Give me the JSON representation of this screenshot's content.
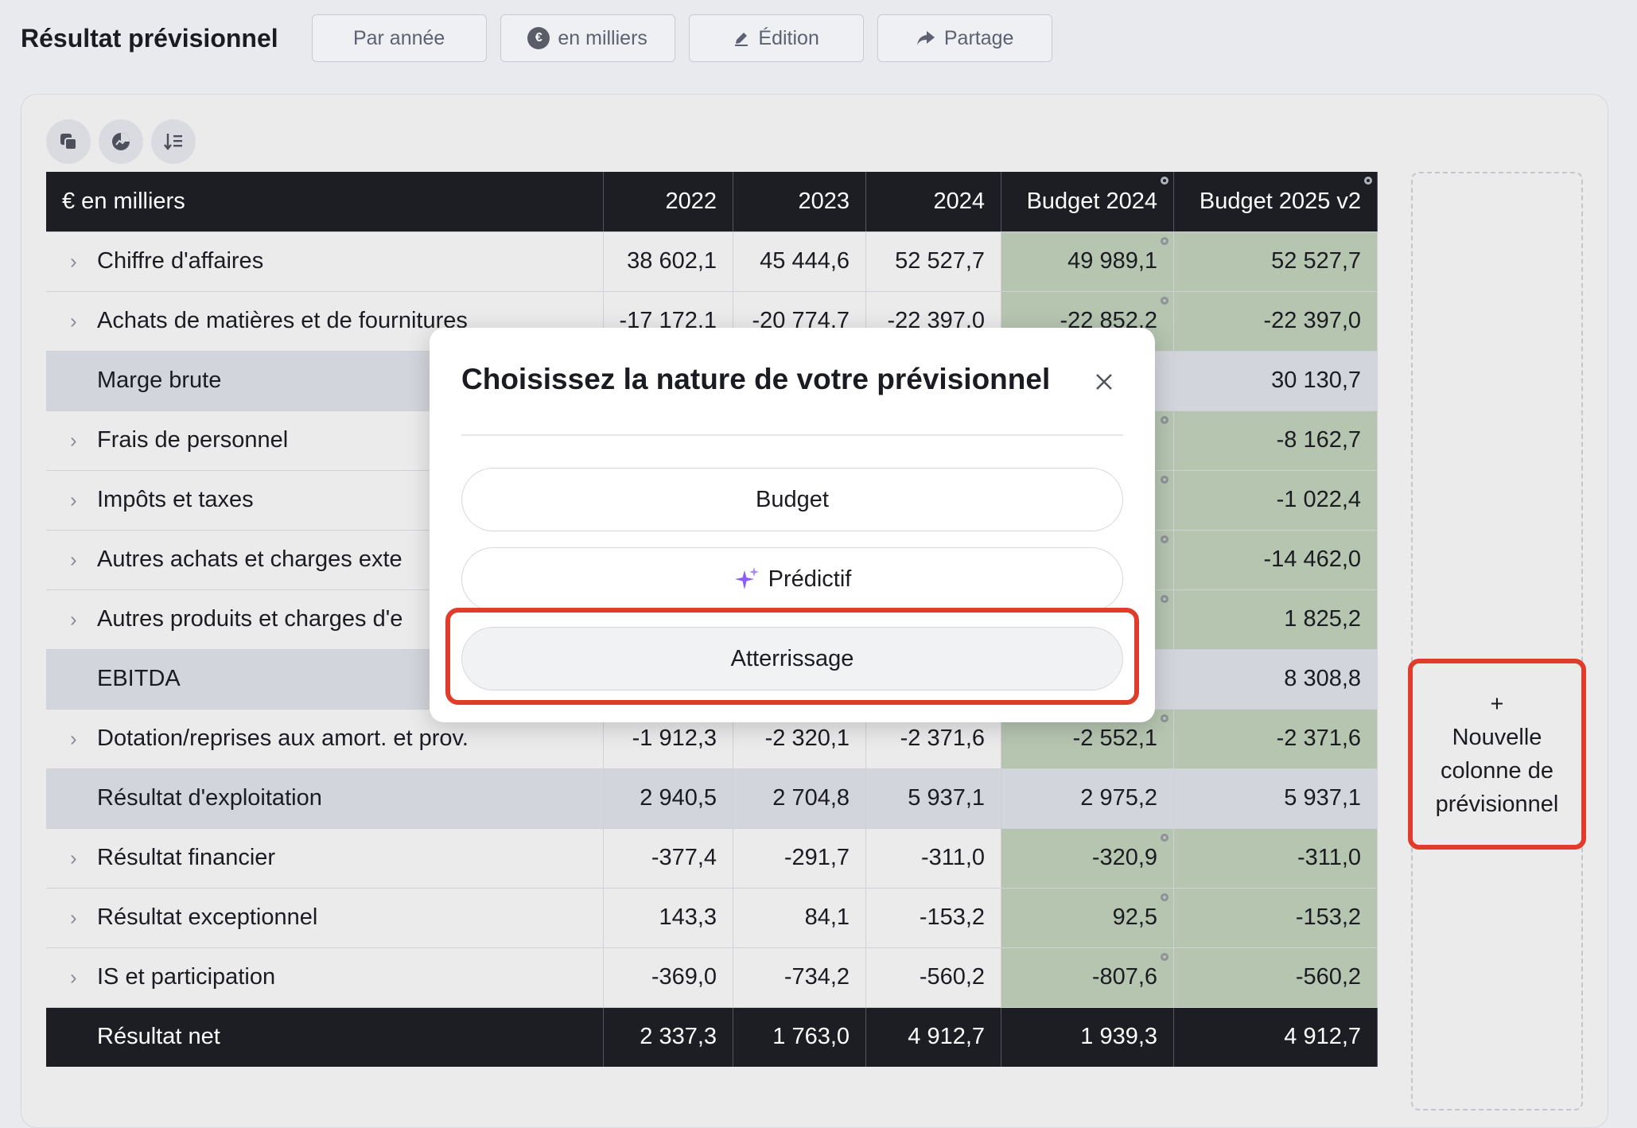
{
  "page": {
    "title": "Résultat prévisionnel",
    "toolbar": [
      {
        "label": "Par année",
        "icon": ""
      },
      {
        "label": "en milliers",
        "icon": "euro-circle-icon"
      },
      {
        "label": "Édition",
        "icon": "pencil-icon"
      },
      {
        "label": "Partage",
        "icon": "share-arrow-icon"
      }
    ],
    "euro_symbol": "€"
  },
  "table": {
    "unit_header": "€ en milliers",
    "columns": [
      "2022",
      "2023",
      "2024",
      "Budget 2024",
      "Budget 2025 v2"
    ],
    "rows": [
      {
        "label": "Chiffre d'affaires",
        "values": [
          "38 602,1",
          "45 444,6",
          "52 527,7",
          "49 989,1",
          "52 527,7"
        ]
      },
      {
        "label": "Achats de matières et de fournitures",
        "values": [
          "-17 172,1",
          "-20 774,7",
          "-22 397,0",
          "-22 852,2",
          "-22 397,0"
        ]
      },
      {
        "label": "Marge brute",
        "values": [
          "",
          "",
          "",
          "",
          "30 130,7"
        ]
      },
      {
        "label": "Frais de personnel",
        "values": [
          "",
          "",
          "",
          "",
          "-8 162,7"
        ]
      },
      {
        "label": "Impôts et taxes",
        "values": [
          "",
          "",
          "",
          "",
          "-1 022,4"
        ]
      },
      {
        "label": "Autres achats et charges exte",
        "values": [
          "",
          "",
          "",
          "",
          "-14 462,0"
        ]
      },
      {
        "label": "Autres produits et charges d'e",
        "values": [
          "",
          "",
          "",
          "",
          "1 825,2"
        ]
      },
      {
        "label": "EBITDA",
        "values": [
          "",
          "",
          "",
          "",
          "8 308,8"
        ]
      },
      {
        "label": "Dotation/reprises aux amort. et prov.",
        "values": [
          "-1 912,3",
          "-2 320,1",
          "-2 371,6",
          "-2 552,1",
          "-2 371,6"
        ]
      },
      {
        "label": "Résultat d'exploitation",
        "values": [
          "2 940,5",
          "2 704,8",
          "5 937,1",
          "2 975,2",
          "5 937,1"
        ]
      },
      {
        "label": "Résultat financier",
        "values": [
          "-377,4",
          "-291,7",
          "-311,0",
          "-320,9",
          "-311,0"
        ]
      },
      {
        "label": "Résultat exceptionnel",
        "values": [
          "143,3",
          "84,1",
          "-153,2",
          "92,5",
          "-153,2"
        ]
      },
      {
        "label": "IS et participation",
        "values": [
          "-369,0",
          "-734,2",
          "-560,2",
          "-807,6",
          "-560,2"
        ]
      },
      {
        "label": "Résultat net",
        "values": [
          "2 337,3",
          "1 763,0",
          "4 912,7",
          "1 939,3",
          "4 912,7"
        ]
      }
    ]
  },
  "new_column": {
    "plus": "+",
    "label": "Nouvelle colonne de prévisionnel"
  },
  "modal": {
    "title": "Choisissez la nature de votre prévisionnel",
    "options": [
      {
        "label": "Budget"
      },
      {
        "label": "Prédictif",
        "icon": "sparkle-icon"
      },
      {
        "label": "Atterrissage",
        "selected": true
      }
    ]
  },
  "colors": {
    "highlight": "#e03b2b",
    "budget_cell": "#b5c5b0",
    "header_dark": "#1d1e24",
    "subtotal_row": "#d3d5dc",
    "sparkle": "#8b5cf6"
  }
}
